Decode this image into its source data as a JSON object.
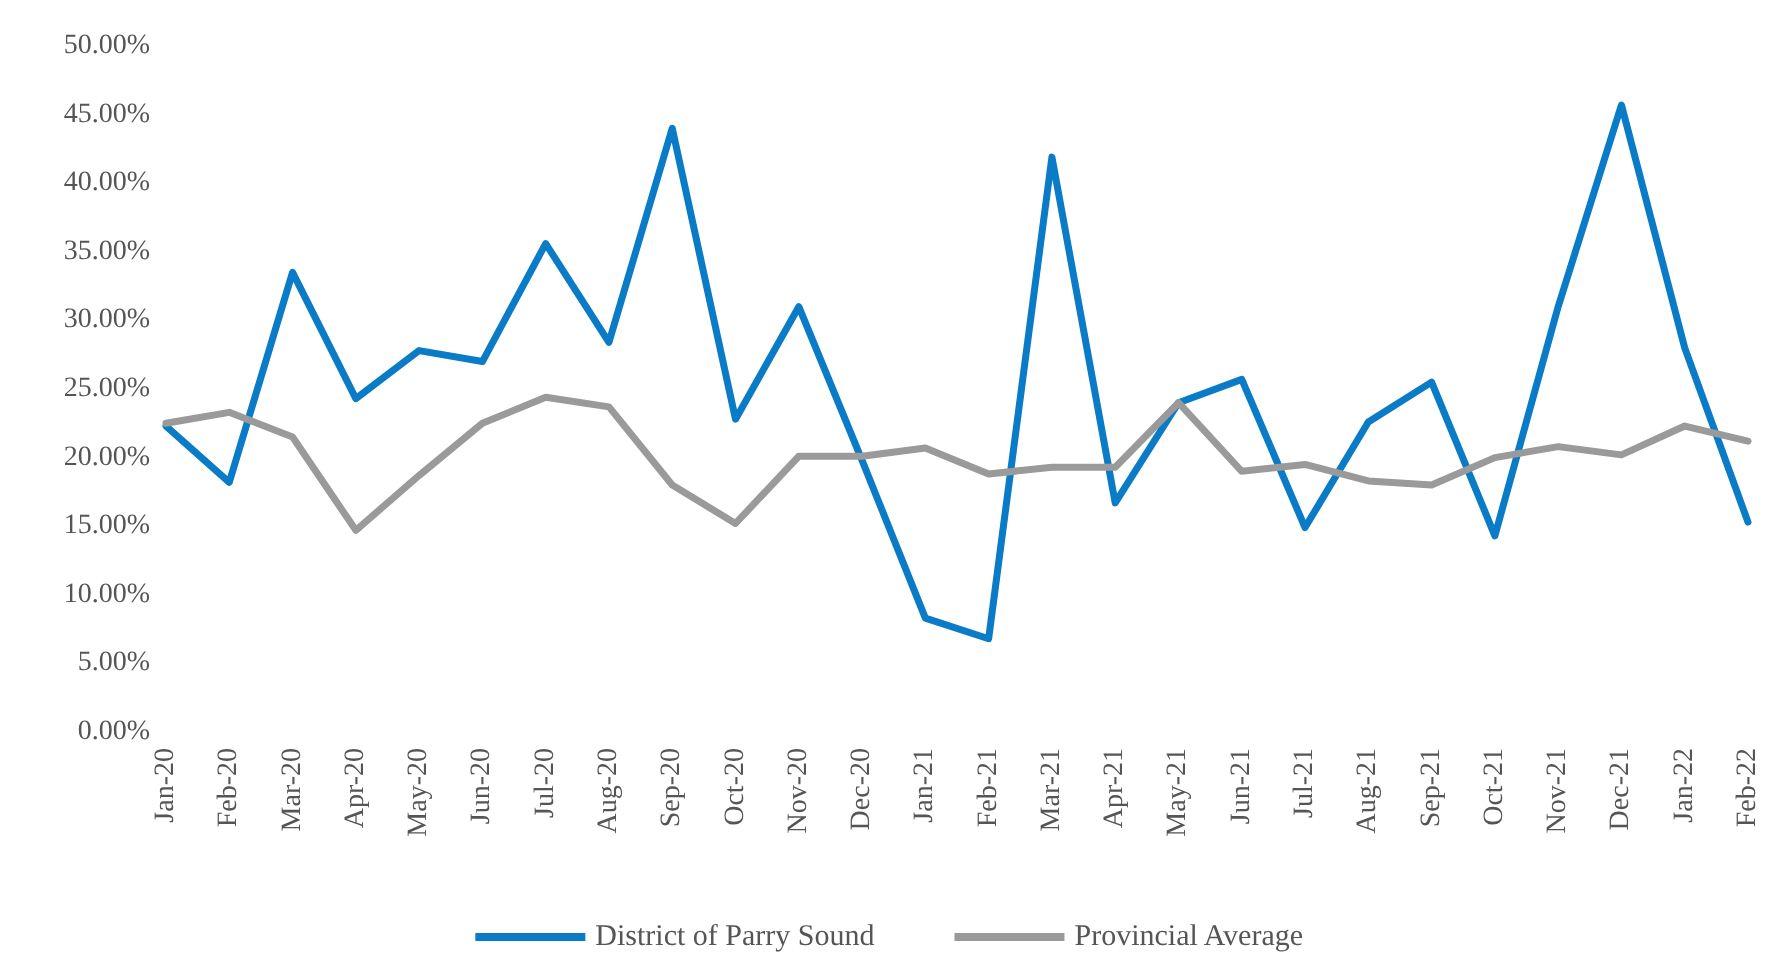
{
  "chart_data": {
    "type": "line",
    "categories": [
      "Jan-20",
      "Feb-20",
      "Mar-20",
      "Apr-20",
      "May-20",
      "Jun-20",
      "Jul-20",
      "Aug-20",
      "Sep-20",
      "Oct-20",
      "Nov-20",
      "Dec-20",
      "Jan-21",
      "Feb-21",
      "Mar-21",
      "Apr-21",
      "May-21",
      "Jun-21",
      "Jul-21",
      "Aug-21",
      "Sep-21",
      "Oct-21",
      "Nov-21",
      "Dec-21",
      "Jan-22",
      "Feb-22"
    ],
    "series": [
      {
        "name": "District of Parry Sound",
        "color": "#0a7bc6",
        "values": [
          22.3,
          18.2,
          33.5,
          24.3,
          27.8,
          27.0,
          35.6,
          28.4,
          44.0,
          22.8,
          31.0,
          19.8,
          8.3,
          6.8,
          41.9,
          16.7,
          24.0,
          25.7,
          14.9,
          22.6,
          25.5,
          14.3,
          31.0,
          45.7,
          28.0,
          15.3
        ]
      },
      {
        "name": "Provincial Average",
        "color": "#9a9a9a",
        "values": [
          22.5,
          23.3,
          21.5,
          14.7,
          18.7,
          22.5,
          24.4,
          23.7,
          18.0,
          15.2,
          20.1,
          20.1,
          20.7,
          18.8,
          19.3,
          19.3,
          24.0,
          19.0,
          19.5,
          18.3,
          18.0,
          20.0,
          20.8,
          20.2,
          22.3,
          21.2
        ]
      }
    ],
    "ylim": [
      0,
      50
    ],
    "yticks": [
      {
        "value": 0,
        "label": "0.00%"
      },
      {
        "value": 5,
        "label": "5.00%"
      },
      {
        "value": 10,
        "label": "10.00%"
      },
      {
        "value": 15,
        "label": "15.00%"
      },
      {
        "value": 20,
        "label": "20.00%"
      },
      {
        "value": 25,
        "label": "25.00%"
      },
      {
        "value": 30,
        "label": "30.00%"
      },
      {
        "value": 35,
        "label": "35.00%"
      },
      {
        "value": 40,
        "label": "40.00%"
      },
      {
        "value": 45,
        "label": "45.00%"
      },
      {
        "value": 50,
        "label": "50.00%"
      }
    ],
    "grid": false,
    "legend": "bottom",
    "marker": "none",
    "line_style": "solid"
  }
}
